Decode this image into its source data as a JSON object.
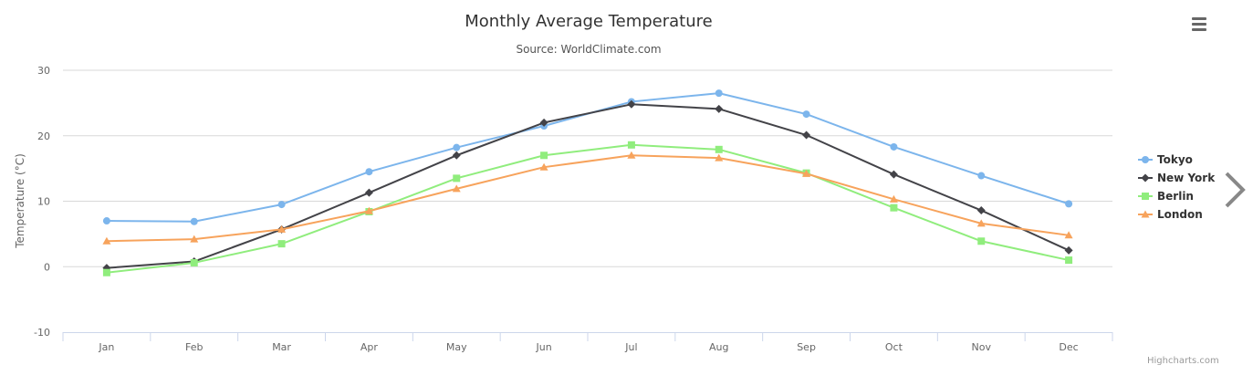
{
  "menu": {
    "icon": "hamburger-menu-icon"
  },
  "navigation": {
    "next_icon": "chevron-right-icon"
  },
  "credits": {
    "text": "Highcharts.com"
  },
  "chart_data": {
    "type": "line",
    "title": "Monthly Average Temperature",
    "subtitle": "Source: WorldClimate.com",
    "xlabel": "",
    "ylabel": "Temperature (°C)",
    "ylim": [
      -10,
      30
    ],
    "yticks": [
      -10,
      0,
      10,
      20,
      30
    ],
    "grid": true,
    "legend_position": "right",
    "categories": [
      "Jan",
      "Feb",
      "Mar",
      "Apr",
      "May",
      "Jun",
      "Jul",
      "Aug",
      "Sep",
      "Oct",
      "Nov",
      "Dec"
    ],
    "series": [
      {
        "name": "Tokyo",
        "color": "#7cb5ec",
        "marker": "circle",
        "values": [
          7.0,
          6.9,
          9.5,
          14.5,
          18.2,
          21.5,
          25.2,
          26.5,
          23.3,
          18.3,
          13.9,
          9.6
        ]
      },
      {
        "name": "New York",
        "color": "#434348",
        "marker": "diamond",
        "values": [
          -0.2,
          0.8,
          5.7,
          11.3,
          17.0,
          22.0,
          24.8,
          24.1,
          20.1,
          14.1,
          8.6,
          2.5
        ]
      },
      {
        "name": "Berlin",
        "color": "#90ed7d",
        "marker": "square",
        "values": [
          -0.9,
          0.6,
          3.5,
          8.4,
          13.5,
          17.0,
          18.6,
          17.9,
          14.3,
          9.0,
          3.9,
          1.0
        ]
      },
      {
        "name": "London",
        "color": "#f7a35c",
        "marker": "triangle",
        "values": [
          3.9,
          4.2,
          5.7,
          8.5,
          11.9,
          15.2,
          17.0,
          16.6,
          14.2,
          10.3,
          6.6,
          4.8
        ]
      }
    ]
  }
}
